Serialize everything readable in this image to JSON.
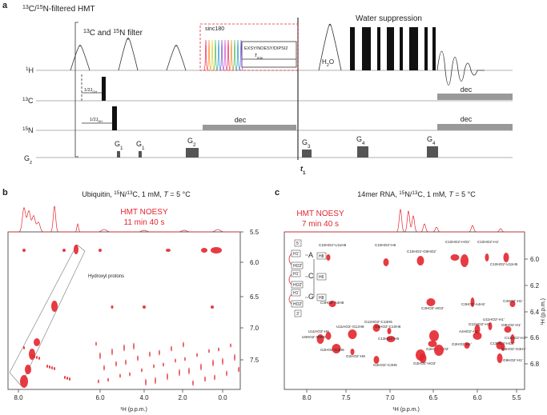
{
  "panels": {
    "a": {
      "label": "a",
      "title": [
        "13",
        "C/",
        "15",
        "N-filtered HMT"
      ],
      "filter_label": [
        "13",
        "C and ",
        "15",
        "N filter"
      ],
      "water_suppression": "Water suppression",
      "sinc": "sinc180",
      "mixing_block": "EXSY/NOESY/DIPSI2",
      "tau_mix": [
        "τ",
        "mix"
      ],
      "h2o": [
        "H",
        "2",
        "O"
      ],
      "rows": [
        [
          "1",
          "H"
        ],
        [
          "13",
          "C"
        ],
        [
          "15",
          "N"
        ],
        [
          "G",
          "z"
        ]
      ],
      "delay_ch": [
        "1/2J",
        "CH"
      ],
      "delay_nh": [
        "1/2J",
        "NH"
      ],
      "dec": [
        "dec",
        "dec",
        "dec"
      ],
      "gradients": [
        [
          "G",
          "1"
        ],
        [
          "G",
          "1"
        ],
        [
          "G",
          "2"
        ],
        [
          "G",
          "3"
        ],
        [
          "G",
          "4"
        ],
        [
          "G",
          "4"
        ]
      ],
      "t1": [
        "t",
        "1"
      ]
    },
    "b": {
      "label": "b",
      "title": [
        "Ubiquitin, ",
        "15",
        "N/",
        "13",
        "C, 1 mM, ",
        "T",
        " = 5 °C"
      ],
      "experiment": "HMT NOESY",
      "time": "11 min 40 s",
      "annotation": "Hydroxyl protons",
      "x_ticks": [
        "8.0",
        "6.0",
        "4.0",
        "2.0",
        "0.0"
      ],
      "y_ticks": [
        "5.5",
        "6.0",
        "6.5",
        "7.0",
        "7.5"
      ],
      "x_label": [
        "1",
        "H (p.p.m.)"
      ]
    },
    "c": {
      "label": "c",
      "title": [
        "14mer RNA, ",
        "15",
        "N/",
        "13",
        "C, 1 mM, ",
        "T",
        " = 5 °C"
      ],
      "experiment": "HMT NOESY",
      "time": "7 min 40 s",
      "x_ticks": [
        "8.0",
        "7.5",
        "7.0",
        "6.5",
        "6.0",
        "5.5"
      ],
      "y_ticks": [
        "6.0",
        "6.2",
        "6.4",
        "6.6",
        "6.8"
      ],
      "x_label": [
        "1",
        "H (p.p.m.)"
      ],
      "y_label": [
        "1",
        "H (p.p.m.)"
      ],
      "scheme": [
        "5'",
        "H1'",
        "HO2'",
        "A",
        "H8",
        "H1'",
        "HO2'",
        "C",
        "H6",
        "H1'",
        "HO2'",
        "G",
        "H8",
        "3'"
      ],
      "assignments": [
        "C10HO2'-U11H6",
        "C10HO2'-H6",
        "C10HO2'-G9HO2'",
        "C10HO2'-HO2'",
        "C10HO2'-H1'",
        "C10HO2'-U11H5",
        "C3HO2'-A4H8",
        "C3HO2'-HO2'",
        "C3HO2'-A4H1'",
        "C3HO2'-H1'",
        "G12HO2'-C13H5",
        "U11HO2'-G12H8",
        "G8HO2'-C10H6",
        "U11HO2'-H6",
        "U8HO2'-G9H8",
        "C13HO2'-H6",
        "U11HO2'-H1'",
        "G12HO2'-H1'",
        "G8HO2'-H1'",
        "A4HO2'-H1'",
        "C13HO2'-H1'",
        "G2HO2'-H1'",
        "C13HO2'-HO2'",
        "G2HO2'-C3H6",
        "G2HO2'-H8",
        "G2HO2'-C3H5",
        "G2HO2'-HO2'",
        "G2HO2'-HO2'",
        "G2HO2'-G3H1'",
        "G9HO2'-H1'"
      ]
    }
  }
}
